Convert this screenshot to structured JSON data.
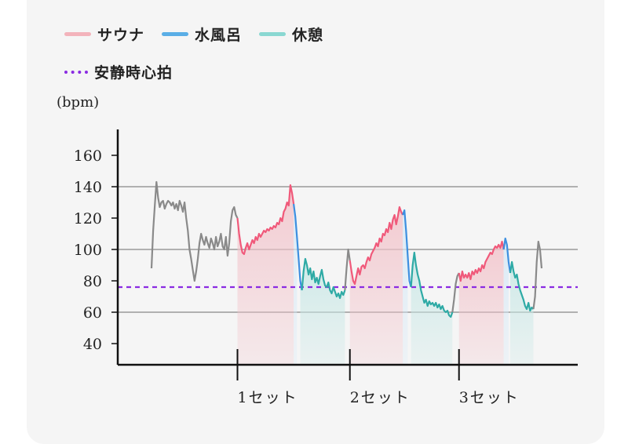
{
  "legend": {
    "sauna": "サウナ",
    "water_bath": "水風呂",
    "rest": "休憩",
    "resting_hr": "安静時心拍"
  },
  "unit": "(bpm)",
  "chart_data": {
    "type": "line",
    "ylabel": "(bpm)",
    "ylim": [
      25,
      175
    ],
    "yticks": [
      40,
      60,
      80,
      100,
      120,
      140,
      160
    ],
    "grid_y": [
      60,
      100,
      140
    ],
    "resting_hr": 76,
    "set_labels": [
      "1セット",
      "2セット",
      "3セット"
    ],
    "colors": {
      "sauna": "#f0597a",
      "sauna_fill": "#f2c4cb",
      "water": "#3d8fe0",
      "rest": "#2eaaa5",
      "rest_fill": "#c9e8e6",
      "other": "#8a8a8a",
      "resting": "#8a2be2",
      "legend_sauna": "#f3b3bb",
      "legend_water": "#5aaee6",
      "legend_rest": "#8ad8d2"
    },
    "segments": [
      {
        "kind": "other",
        "points": [
          [
            0,
            88
          ],
          [
            1,
            112
          ],
          [
            2,
            128
          ],
          [
            3,
            143
          ],
          [
            4,
            133
          ],
          [
            5,
            127
          ],
          [
            6,
            130
          ],
          [
            7,
            131
          ],
          [
            8,
            126
          ],
          [
            9,
            129
          ],
          [
            10,
            131
          ],
          [
            11,
            130
          ],
          [
            12,
            128
          ],
          [
            13,
            130
          ],
          [
            14,
            126
          ],
          [
            15,
            129
          ],
          [
            16,
            125
          ],
          [
            17,
            131
          ],
          [
            18,
            128
          ],
          [
            19,
            124
          ],
          [
            20,
            130
          ],
          [
            21,
            120
          ],
          [
            22,
            112
          ],
          [
            23,
            100
          ],
          [
            24,
            94
          ],
          [
            25,
            87
          ],
          [
            26,
            80
          ],
          [
            27,
            86
          ],
          [
            28,
            94
          ],
          [
            29,
            104
          ],
          [
            30,
            110
          ],
          [
            31,
            106
          ],
          [
            32,
            103
          ],
          [
            33,
            108
          ],
          [
            34,
            104
          ],
          [
            35,
            101
          ],
          [
            36,
            107
          ],
          [
            37,
            104
          ],
          [
            38,
            100
          ],
          [
            39,
            108
          ],
          [
            40,
            102
          ],
          [
            41,
            105
          ],
          [
            42,
            110
          ],
          [
            43,
            102
          ],
          [
            44,
            100
          ],
          [
            45,
            108
          ],
          [
            46,
            96
          ],
          [
            47,
            104
          ],
          [
            48,
            118
          ],
          [
            49,
            125
          ],
          [
            50,
            127
          ],
          [
            51,
            122
          ],
          [
            52,
            120
          ]
        ]
      },
      {
        "kind": "sauna",
        "points": [
          [
            52,
            120
          ],
          [
            53,
            110
          ],
          [
            54,
            103
          ],
          [
            55,
            98
          ],
          [
            56,
            97
          ],
          [
            57,
            101
          ],
          [
            58,
            104
          ],
          [
            59,
            100
          ],
          [
            60,
            103
          ],
          [
            61,
            106
          ],
          [
            62,
            104
          ],
          [
            63,
            108
          ],
          [
            64,
            106
          ],
          [
            65,
            110
          ],
          [
            66,
            108
          ],
          [
            67,
            110
          ],
          [
            68,
            112
          ],
          [
            69,
            111
          ],
          [
            70,
            113
          ],
          [
            71,
            112
          ],
          [
            72,
            114
          ],
          [
            73,
            113
          ],
          [
            74,
            115
          ],
          [
            75,
            114
          ],
          [
            76,
            117
          ],
          [
            77,
            116
          ],
          [
            78,
            120
          ],
          [
            79,
            118
          ],
          [
            80,
            124
          ],
          [
            81,
            126
          ],
          [
            82,
            130
          ],
          [
            83,
            128
          ],
          [
            84,
            141
          ],
          [
            85,
            136
          ],
          [
            86,
            129
          ]
        ]
      },
      {
        "kind": "water",
        "points": [
          [
            86,
            129
          ],
          [
            87,
            121
          ],
          [
            88,
            108
          ],
          [
            89,
            94
          ],
          [
            90,
            80
          ],
          [
            91,
            74
          ]
        ]
      },
      {
        "kind": "rest",
        "points": [
          [
            91,
            74
          ],
          [
            92,
            86
          ],
          [
            93,
            94
          ],
          [
            94,
            90
          ],
          [
            95,
            84
          ],
          [
            96,
            88
          ],
          [
            97,
            81
          ],
          [
            98,
            86
          ],
          [
            99,
            79
          ],
          [
            100,
            82
          ],
          [
            101,
            78
          ],
          [
            102,
            83
          ],
          [
            103,
            87
          ],
          [
            104,
            81
          ],
          [
            105,
            77
          ],
          [
            106,
            76
          ],
          [
            107,
            79
          ],
          [
            108,
            74
          ],
          [
            109,
            72
          ],
          [
            110,
            76
          ],
          [
            111,
            73
          ],
          [
            112,
            70
          ],
          [
            113,
            72
          ],
          [
            114,
            69
          ],
          [
            115,
            73
          ],
          [
            116,
            71
          ],
          [
            117,
            74
          ]
        ]
      },
      {
        "kind": "other",
        "points": [
          [
            117,
            74
          ],
          [
            118,
            88
          ],
          [
            119,
            100
          ],
          [
            120,
            93
          ]
        ]
      },
      {
        "kind": "sauna",
        "points": [
          [
            120,
            93
          ],
          [
            121,
            86
          ],
          [
            122,
            80
          ],
          [
            123,
            78
          ],
          [
            124,
            83
          ],
          [
            125,
            88
          ],
          [
            126,
            84
          ],
          [
            127,
            89
          ],
          [
            128,
            90
          ],
          [
            129,
            88
          ],
          [
            130,
            92
          ],
          [
            131,
            95
          ],
          [
            132,
            93
          ],
          [
            133,
            97
          ],
          [
            134,
            99
          ],
          [
            135,
            101
          ],
          [
            136,
            104
          ],
          [
            137,
            102
          ],
          [
            138,
            107
          ],
          [
            139,
            105
          ],
          [
            140,
            110
          ],
          [
            141,
            109
          ],
          [
            142,
            113
          ],
          [
            143,
            111
          ],
          [
            144,
            117
          ],
          [
            145,
            113
          ],
          [
            146,
            119
          ],
          [
            147,
            122
          ],
          [
            148,
            116
          ],
          [
            149,
            121
          ],
          [
            150,
            127
          ],
          [
            151,
            124
          ],
          [
            152,
            122
          ]
        ]
      },
      {
        "kind": "water",
        "points": [
          [
            152,
            122
          ],
          [
            153,
            125
          ],
          [
            154,
            112
          ],
          [
            155,
            96
          ],
          [
            156,
            80
          ],
          [
            157,
            76
          ]
        ]
      },
      {
        "kind": "rest",
        "points": [
          [
            157,
            76
          ],
          [
            158,
            90
          ],
          [
            159,
            98
          ],
          [
            160,
            90
          ],
          [
            161,
            84
          ],
          [
            162,
            80
          ],
          [
            163,
            74
          ],
          [
            164,
            70
          ],
          [
            165,
            66
          ],
          [
            166,
            68
          ],
          [
            167,
            64
          ],
          [
            168,
            67
          ],
          [
            169,
            65
          ],
          [
            170,
            66
          ],
          [
            171,
            64
          ],
          [
            172,
            66
          ],
          [
            173,
            63
          ],
          [
            174,
            65
          ],
          [
            175,
            62
          ],
          [
            176,
            64
          ],
          [
            177,
            61
          ],
          [
            178,
            60
          ],
          [
            179,
            61
          ],
          [
            180,
            58
          ],
          [
            181,
            57
          ],
          [
            182,
            60
          ]
        ]
      },
      {
        "kind": "other",
        "points": [
          [
            182,
            60
          ],
          [
            183,
            68
          ],
          [
            184,
            78
          ],
          [
            185,
            83
          ],
          [
            186,
            85
          ]
        ]
      },
      {
        "kind": "sauna",
        "points": [
          [
            186,
            85
          ],
          [
            187,
            80
          ],
          [
            188,
            86
          ],
          [
            189,
            82
          ],
          [
            190,
            84
          ],
          [
            191,
            82
          ],
          [
            192,
            85
          ],
          [
            193,
            81
          ],
          [
            194,
            86
          ],
          [
            195,
            84
          ],
          [
            196,
            87
          ],
          [
            197,
            85
          ],
          [
            198,
            88
          ],
          [
            199,
            86
          ],
          [
            200,
            90
          ],
          [
            201,
            88
          ],
          [
            202,
            92
          ],
          [
            203,
            94
          ],
          [
            204,
            96
          ],
          [
            205,
            98
          ],
          [
            206,
            97
          ],
          [
            207,
            100
          ],
          [
            208,
            102
          ],
          [
            209,
            101
          ],
          [
            210,
            103
          ],
          [
            211,
            101
          ],
          [
            212,
            105
          ],
          [
            213,
            100
          ]
        ]
      },
      {
        "kind": "water",
        "points": [
          [
            213,
            100
          ],
          [
            214,
            107
          ],
          [
            215,
            103
          ],
          [
            216,
            92
          ],
          [
            217,
            85
          ]
        ]
      },
      {
        "kind": "rest",
        "points": [
          [
            217,
            85
          ],
          [
            218,
            92
          ],
          [
            219,
            86
          ],
          [
            220,
            82
          ],
          [
            221,
            84
          ],
          [
            222,
            78
          ],
          [
            223,
            74
          ],
          [
            224,
            71
          ],
          [
            225,
            68
          ],
          [
            226,
            64
          ],
          [
            227,
            62
          ],
          [
            228,
            66
          ],
          [
            229,
            61
          ],
          [
            230,
            63
          ],
          [
            231,
            62
          ]
        ]
      },
      {
        "kind": "other",
        "points": [
          [
            231,
            62
          ],
          [
            232,
            70
          ],
          [
            233,
            92
          ],
          [
            234,
            105
          ],
          [
            235,
            100
          ],
          [
            236,
            88
          ]
        ]
      }
    ],
    "fills": [
      {
        "kind": "sauna",
        "from": 52,
        "to": 86,
        "top": "profile"
      },
      {
        "kind": "water",
        "from": 86,
        "to": 88,
        "top": "profile"
      },
      {
        "kind": "rest",
        "from": 90,
        "to": 117,
        "top": "profile"
      },
      {
        "kind": "sauna",
        "from": 120,
        "to": 152,
        "top": "profile"
      },
      {
        "kind": "water",
        "from": 152,
        "to": 155,
        "top": "profile"
      },
      {
        "kind": "rest",
        "from": 157,
        "to": 182,
        "top": "profile"
      },
      {
        "kind": "sauna",
        "from": 186,
        "to": 213,
        "top": "profile"
      },
      {
        "kind": "water",
        "from": 213,
        "to": 216,
        "top": "profile"
      },
      {
        "kind": "rest",
        "from": 217,
        "to": 231,
        "top": "profile"
      }
    ],
    "set_marks": [
      52,
      120,
      186
    ],
    "xlim": [
      -18,
      250
    ]
  }
}
